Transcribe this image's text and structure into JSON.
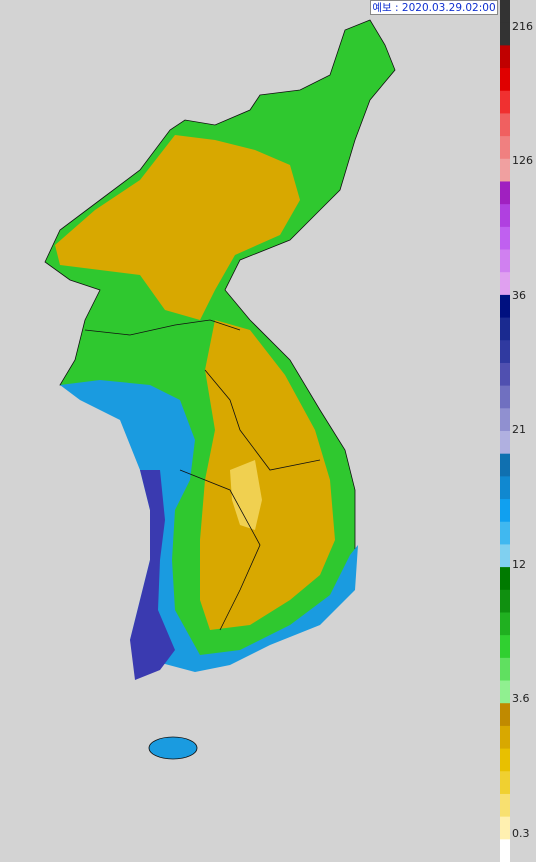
{
  "header": {
    "forecast": "예보 : 2020.03.29.02:00"
  },
  "legend": {
    "labels": [
      "216",
      "126",
      "36",
      "21",
      "12",
      "3.6",
      "0.3"
    ]
  }
}
